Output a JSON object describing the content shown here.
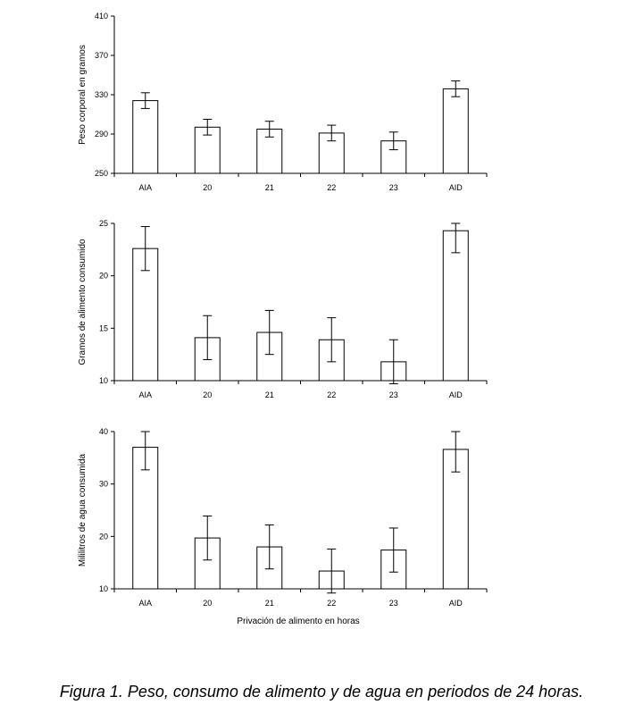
{
  "figure": {
    "caption": "Figura 1. Peso, consumo de alimento y de agua en periodos de 24 horas.",
    "xlabel": "Privación de alimento en horas"
  },
  "colors": {
    "bar_fill": "#ffffff",
    "bar_stroke": "#000000",
    "axis": "#000000"
  },
  "chart_data": [
    {
      "type": "bar",
      "categories": [
        "AIA",
        "20",
        "21",
        "22",
        "23",
        "AID"
      ],
      "values": [
        324,
        297,
        295,
        291,
        283,
        336
      ],
      "errors": [
        8,
        8,
        8,
        8,
        9,
        8
      ],
      "ylabel": "Peso corporal en gramos",
      "ylim": [
        250,
        410
      ],
      "yticks": [
        250,
        290,
        330,
        370,
        410
      ]
    },
    {
      "type": "bar",
      "categories": [
        "AIA",
        "20",
        "21",
        "22",
        "23",
        "AID"
      ],
      "values": [
        22.6,
        14.1,
        14.6,
        13.9,
        11.8,
        24.3
      ],
      "errors": [
        2.1,
        2.1,
        2.1,
        2.1,
        2.1,
        2.1
      ],
      "ylabel": "Gramos de alimento consumido",
      "ylim": [
        10,
        25
      ],
      "yticks": [
        10,
        15,
        20,
        25
      ]
    },
    {
      "type": "bar",
      "categories": [
        "AIA",
        "20",
        "21",
        "22",
        "23",
        "AID"
      ],
      "values": [
        37.0,
        19.7,
        18.0,
        13.4,
        17.4,
        36.6
      ],
      "errors": [
        4.3,
        4.2,
        4.2,
        4.2,
        4.2,
        4.3
      ],
      "ylabel": "Mililitros de agua consumida",
      "ylim": [
        10,
        40
      ],
      "yticks": [
        10,
        20,
        30,
        40
      ]
    }
  ]
}
